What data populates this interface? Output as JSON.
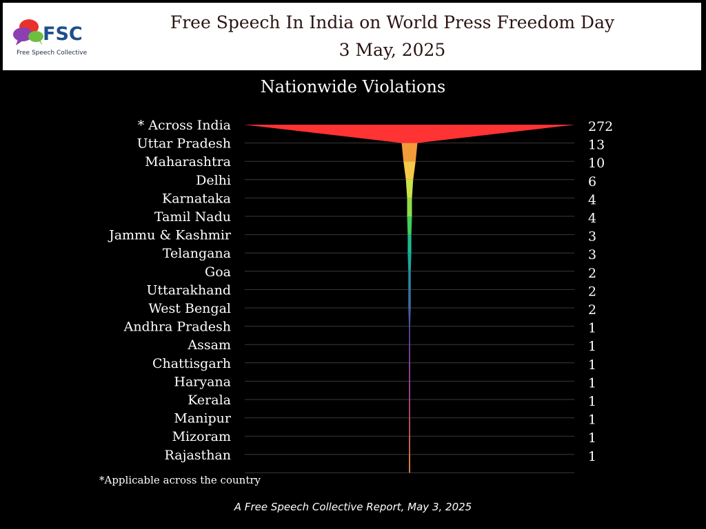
{
  "header": {
    "logo_text": "FSC",
    "logo_subtext": "Free Speech Collective",
    "title_line1": "Free Speech In India on World Press Freedom Day",
    "title_line2": "3 May, 2025"
  },
  "chart_data": {
    "type": "bar",
    "style": "funnel",
    "title": "Nationwide Violations",
    "categories": [
      "* Across India",
      "Uttar Pradesh",
      "Maharashtra",
      "Delhi",
      "Karnataka",
      "Tamil Nadu",
      "Jammu & Kashmir",
      "Telangana",
      "Goa",
      "Uttarakhand",
      "West Bengal",
      "Andhra Pradesh",
      "Assam",
      "Chattisgarh",
      "Haryana",
      "Kerala",
      "Manipur",
      "Mizoram",
      "Rajasthan"
    ],
    "values": [
      272,
      13,
      10,
      6,
      4,
      4,
      3,
      3,
      2,
      2,
      2,
      1,
      1,
      1,
      1,
      1,
      1,
      1,
      1
    ],
    "colors": [
      "#ff3333",
      "#f39a3a",
      "#f6c94a",
      "#c9e34a",
      "#8fdc4a",
      "#3fcf5a",
      "#1fb88a",
      "#1aa89a",
      "#2a8aa0",
      "#3a70a8",
      "#4a5aa8",
      "#5a4aa8",
      "#7a4aa8",
      "#9a4aa8",
      "#b04a98",
      "#c04a80",
      "#d05a70",
      "#e07060",
      "#f09050"
    ],
    "grid": true,
    "legend": "none"
  },
  "footnote": "*Applicable across the country",
  "footer": "A Free Speech Collective Report, May 3, 2025"
}
